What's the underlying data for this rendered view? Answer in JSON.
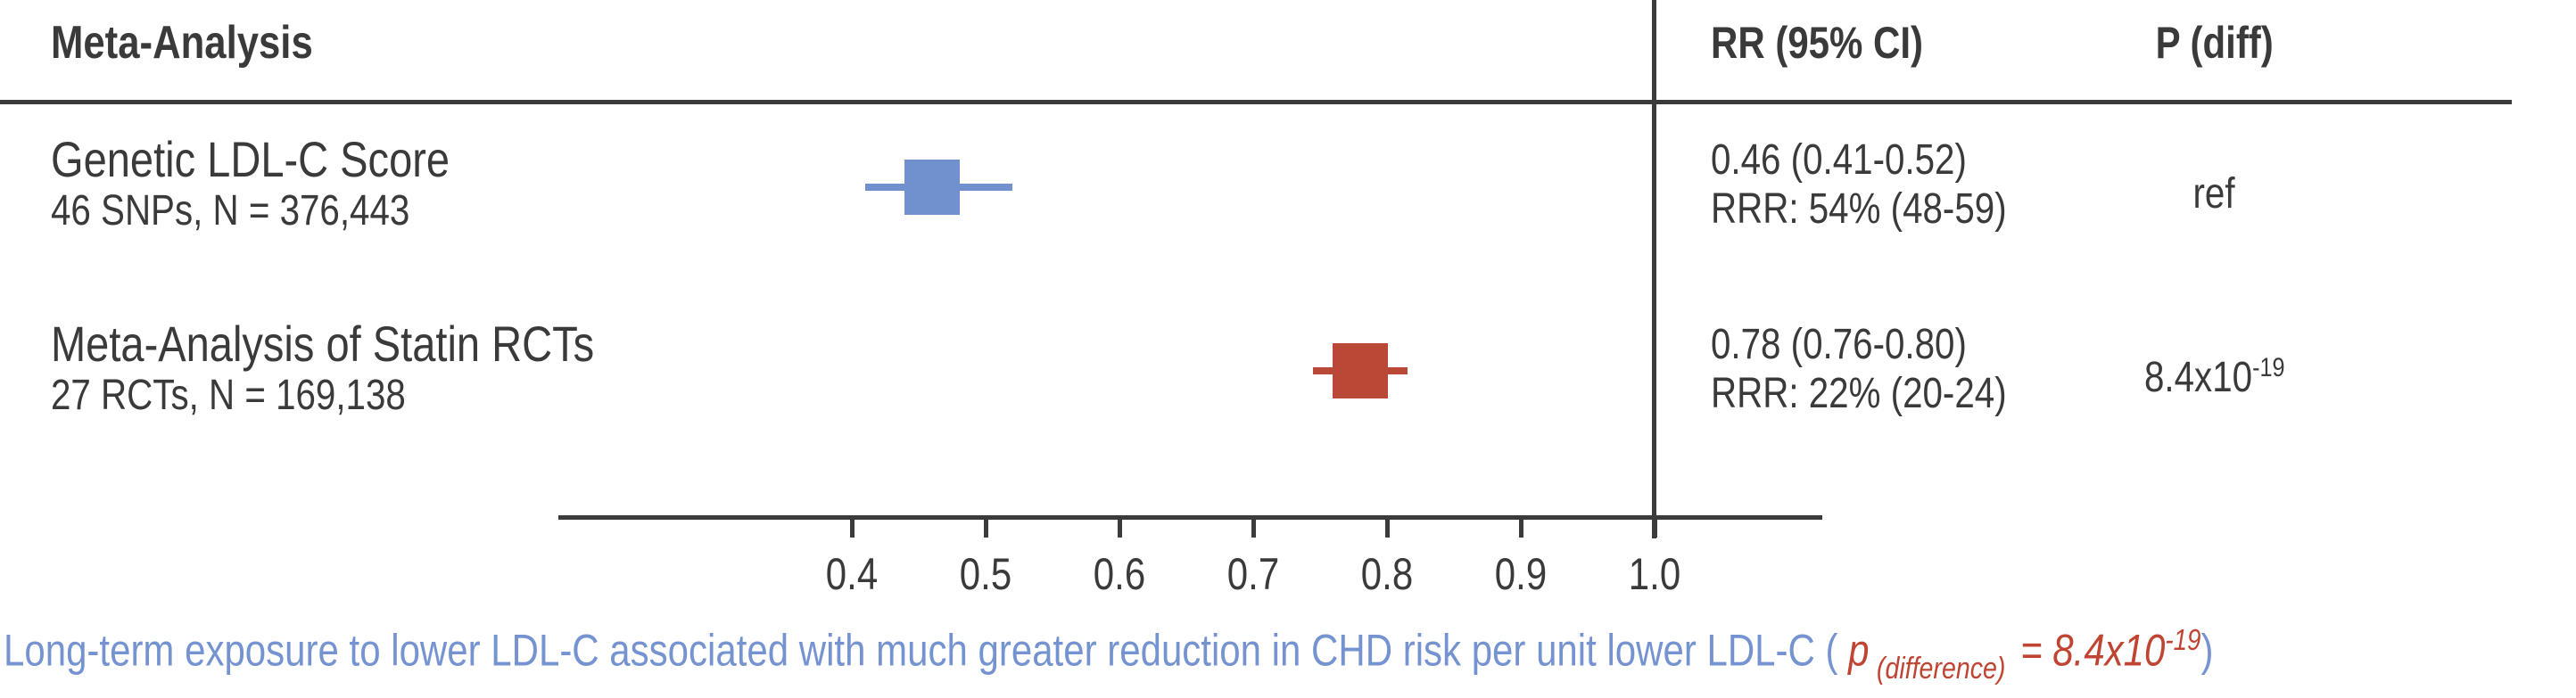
{
  "table": {
    "header": {
      "study_col": "Meta-Analysis",
      "rr_col": "RR (95% CI)",
      "p_col": "P (diff)"
    },
    "rows": [
      {
        "name": "Genetic LDL-C Score",
        "detail": "46 SNPs, N = 376,443",
        "rr_text": "0.46 (0.41-0.52)",
        "rrr_text": "RRR: 54% (48-59)",
        "p_base": "ref",
        "p_exp": ""
      },
      {
        "name": "Meta-Analysis of Statin RCTs",
        "detail": "27 RCTs, N = 169,138",
        "rr_text": "0.78 (0.76-0.80)",
        "rrr_text": "RRR: 22% (20-24)",
        "p_base": "8.4x10",
        "p_exp": "-19"
      }
    ]
  },
  "chart_data": {
    "type": "scatter",
    "subtype": "forest-plot",
    "title": "",
    "xlabel": "",
    "x_min": 0.4,
    "x_max": 1.0,
    "reference_line_x": 1.0,
    "grid": false,
    "ticks": [
      {
        "v": 0.4,
        "label": "0.4"
      },
      {
        "v": 0.5,
        "label": "0.5"
      },
      {
        "v": 0.6,
        "label": "0.6"
      },
      {
        "v": 0.7,
        "label": "0.7"
      },
      {
        "v": 0.8,
        "label": "0.8"
      },
      {
        "v": 0.9,
        "label": "0.9"
      },
      {
        "v": 1.0,
        "label": "1.0"
      }
    ],
    "series": [
      {
        "label": "Genetic LDL-C Score",
        "n_info": "46 SNPs, N = 376,443",
        "rr": 0.46,
        "ci": [
          0.41,
          0.52
        ],
        "rrr_pct": 54,
        "rrr_ci": [
          48,
          59
        ],
        "p": "ref",
        "color": "#7191ce"
      },
      {
        "label": "Meta-Analysis of Statin RCTs",
        "n_info": "27 RCTs, N = 169,138",
        "rr": 0.78,
        "ci": [
          0.76,
          0.8
        ],
        "rrr_pct": 22,
        "rrr_ci": [
          20,
          24
        ],
        "p": "8.4x10-19",
        "color": "#b94936"
      }
    ]
  },
  "caption": {
    "main": "Long-term exposure to lower LDL-C associated with much greater reduction in CHD risk per unit lower LDL-C ( ",
    "p_symbol": "p",
    "p_subscript": "(difference)",
    "p_value": " = 8.4x10",
    "p_exponent": "-19",
    "closing": ")"
  },
  "colors": {
    "text": "#3a3a3a",
    "lines": "#3b3b3b",
    "genetic_marker_blue": "#7191ce",
    "statin_marker_red": "#b94936",
    "caption_blue": "#7493d0",
    "caption_red": "#c04432"
  }
}
